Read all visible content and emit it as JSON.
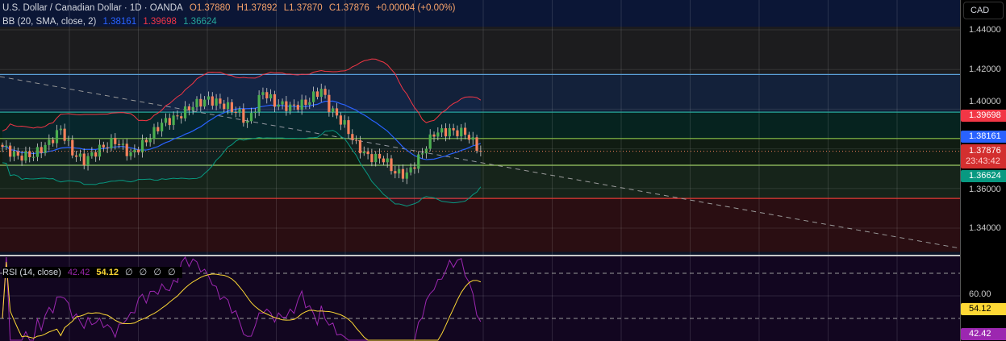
{
  "header": {
    "symbol": "U.S. Dollar / Canadian Dollar · 1D · OANDA",
    "open_label": "O",
    "open": "1.37880",
    "high_label": "H",
    "high": "1.37892",
    "low_label": "L",
    "low": "1.37870",
    "close_label": "C",
    "close": "1.37876",
    "change": "+0.00004 (+0.00%)"
  },
  "bb": {
    "label": "BB (20, SMA, close, 2)",
    "basis": "1.38161",
    "upper": "1.39698",
    "lower": "1.36624"
  },
  "rsi": {
    "label": "RSI (14, close)",
    "value": "42.42",
    "ma": "54.12",
    "extras": [
      "∅",
      "∅",
      "∅",
      "∅"
    ]
  },
  "axis": {
    "currency": "CAD",
    "ticks": [
      "1.44000",
      "1.42000",
      "1.40000",
      "1.36000",
      "1.34000"
    ],
    "rsi_ticks": [
      "60.00"
    ],
    "tags": {
      "upper": "1.39698",
      "basis": "1.38161",
      "price": "1.37876",
      "countdown": "23:43:42",
      "lower": "1.36624",
      "rsi_ma": "54.12",
      "rsi": "42.42"
    }
  },
  "colors": {
    "up": "#26a69a",
    "up_body": "#4caf50",
    "down": "#f7815c",
    "basis": "#2962ff",
    "upper": "#f23645",
    "lower": "#089981",
    "rsi": "#9c27b0",
    "rsi_ma": "#fdd835"
  },
  "chart_data": {
    "type": "candlestick",
    "ylim": [
      1.33,
      1.45
    ],
    "rsi_levels": [
      70,
      50
    ],
    "close_path": [
      [
        0,
        1.381
      ],
      [
        4,
        1.376
      ],
      [
        8,
        1.377
      ],
      [
        12,
        1.383
      ],
      [
        15,
        1.39
      ],
      [
        18,
        1.378
      ],
      [
        21,
        1.374
      ],
      [
        25,
        1.38
      ],
      [
        29,
        1.384
      ],
      [
        33,
        1.377
      ],
      [
        37,
        1.384
      ],
      [
        41,
        1.393
      ],
      [
        45,
        1.396
      ],
      [
        49,
        1.402
      ],
      [
        53,
        1.405
      ],
      [
        57,
        1.402
      ],
      [
        61,
        1.398
      ],
      [
        63,
        1.393
      ],
      [
        67,
        1.409
      ],
      [
        70,
        1.403
      ],
      [
        74,
        1.401
      ],
      [
        78,
        1.403
      ],
      [
        82,
        1.41
      ],
      [
        84,
        1.401
      ],
      [
        88,
        1.392
      ],
      [
        91,
        1.382
      ],
      [
        94,
        1.376
      ],
      [
        98,
        1.375
      ],
      [
        101,
        1.368
      ],
      [
        104,
        1.367
      ],
      [
        107,
        1.375
      ],
      [
        111,
        1.388
      ],
      [
        115,
        1.389
      ],
      [
        119,
        1.388
      ],
      [
        123,
        1.3788
      ]
    ],
    "zones": [
      [
        1.4416,
        1.4175,
        "#1c1c1e"
      ],
      [
        1.4175,
        1.3985,
        "#13213a"
      ],
      [
        1.3985,
        1.3852,
        "#06231f"
      ],
      [
        1.3852,
        1.3717,
        "#101c12"
      ],
      [
        1.3717,
        1.355,
        "#16241a"
      ],
      [
        1.355,
        1.328,
        "#2a0e12"
      ]
    ],
    "zone_lines": [
      [
        1.4175,
        "#5aa0d8"
      ],
      [
        1.3985,
        "#26a69a"
      ],
      [
        1.3852,
        "#8bc34a"
      ],
      [
        1.3717,
        "#9ccc65"
      ],
      [
        1.355,
        "#e53935"
      ]
    ]
  }
}
